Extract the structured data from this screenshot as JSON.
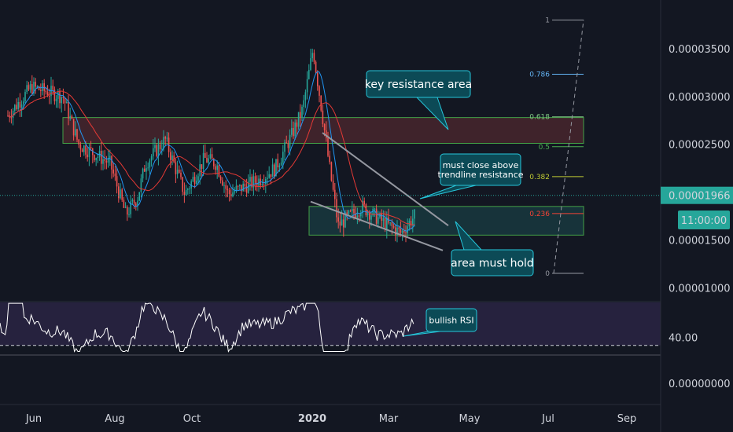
{
  "chart_data": {
    "type": "candlestick",
    "price_axis": {
      "ticks": [
        "0.00003500",
        "0.00003000",
        "0.00002500",
        "0.00001500",
        "0.00001000",
        "0.00000000"
      ],
      "tick_values": [
        3.5e-05,
        3e-05,
        2.5e-05,
        1.5e-05,
        1e-05,
        0.0
      ],
      "current_price_label": "0.00001966",
      "current_price": 1.966e-05,
      "countdown_label": "11:00:00"
    },
    "rsi_axis": {
      "tick_label": "40.00",
      "tick_value": 40
    },
    "time_axis": {
      "labels": [
        "Jun",
        "Aug",
        "Oct",
        "2020",
        "Mar",
        "May",
        "Jul",
        "Sep"
      ],
      "bold": [
        "2020"
      ]
    },
    "fib_levels": [
      {
        "label": "1",
        "value": 1.0,
        "color": "#9598a1"
      },
      {
        "label": "0.786",
        "value": 0.786,
        "color": "#64b5f6"
      },
      {
        "label": "0.618",
        "value": 0.618,
        "color": "#81c784"
      },
      {
        "label": "0.5",
        "value": 0.5,
        "color": "#4caf50"
      },
      {
        "label": "0.382",
        "value": 0.382,
        "color": "#c0ca33"
      },
      {
        "label": "0.236",
        "value": 0.236,
        "color": "#f44336"
      },
      {
        "label": "0",
        "value": 0.0,
        "color": "#9598a1"
      }
    ],
    "annotations": [
      {
        "id": "key-resistance",
        "text": "key resistance area"
      },
      {
        "id": "must-close",
        "lines": [
          "must close above",
          "trendline resistance"
        ]
      },
      {
        "id": "area-hold",
        "text": "area must hold"
      },
      {
        "id": "bullish-rsi",
        "text": "bullish RSI"
      }
    ],
    "zones": [
      {
        "id": "resistance-zone",
        "low": 2.51e-05,
        "high": 2.78e-05,
        "color": "#ef5350"
      },
      {
        "id": "support-zone",
        "low": 1.55e-05,
        "high": 1.85e-05,
        "color": "#26a69a"
      }
    ]
  },
  "colors": {
    "background": "#131722",
    "up": "#26a69a",
    "down": "#ef5350",
    "ma_fast": "#2196f3",
    "ma_slow": "#e53935",
    "rsi_line": "#ffffff",
    "rsi_band": "#7e57c2",
    "callout_bg": "#0c4a56",
    "callout_border": "#26c6da",
    "price_tag": "#26a69a"
  }
}
